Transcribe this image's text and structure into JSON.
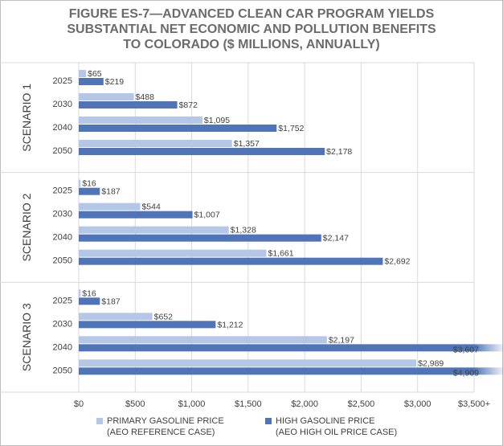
{
  "title_lines": [
    "FIGURE ES-7—ADVANCED CLEAN CAR PROGRAM YIELDS",
    "SUBSTANTIAL NET ECONOMIC AND POLLUTION BENEFITS",
    "TO COLORADO ($ MILLIONS, ANNUALLY)"
  ],
  "colors": {
    "primary": "#b4c7e7",
    "high": "#4f75b8",
    "grid": "#d9d9d9",
    "text": "#404040"
  },
  "chart_data": {
    "type": "bar",
    "orientation": "horizontal",
    "x_ticks": [
      0,
      500,
      1000,
      1500,
      2000,
      2500,
      3000,
      3500
    ],
    "x_tick_labels": [
      "$0",
      "$500",
      "$1,000",
      "$1,500",
      "$2,000",
      "$2,500",
      "$3,000",
      "$3,500+"
    ],
    "xlim": [
      0,
      3500
    ],
    "grid": true,
    "legend_position": "bottom",
    "series": [
      {
        "name_lines": [
          "PRIMARY GASOLINE PRICE",
          "(AEO REFERENCE CASE)"
        ]
      },
      {
        "name_lines": [
          "HIGH GASOLINE PRICE",
          "(AEO HIGH OIL PRICE CASE)"
        ]
      }
    ],
    "groups": [
      {
        "label": "SCENARIO 1",
        "categories": [
          "2025",
          "2030",
          "2040",
          "2050"
        ],
        "primary": [
          65,
          488,
          1095,
          1357
        ],
        "primary_labels": [
          "$65",
          "$488",
          "$1,095",
          "$1,357"
        ],
        "high": [
          219,
          872,
          1752,
          2178
        ],
        "high_labels": [
          "$219",
          "$872",
          "$1,752",
          "$2,178"
        ]
      },
      {
        "label": "SCENARIO 2",
        "categories": [
          "2025",
          "2030",
          "2040",
          "2050"
        ],
        "primary": [
          16,
          544,
          1328,
          1661
        ],
        "primary_labels": [
          "$16",
          "$544",
          "$1,328",
          "$1,661"
        ],
        "high": [
          187,
          1007,
          2147,
          2692
        ],
        "high_labels": [
          "$187",
          "$1,007",
          "$2,147",
          "$2,692"
        ]
      },
      {
        "label": "SCENARIO 3",
        "categories": [
          "2025",
          "2030",
          "2040",
          "2050"
        ],
        "primary": [
          16,
          652,
          2197,
          2989
        ],
        "primary_labels": [
          "$16",
          "$652",
          "$2,197",
          "$2,989"
        ],
        "high": [
          187,
          1212,
          3607,
          4909
        ],
        "high_labels": [
          "$187",
          "$1,212",
          "$3,607",
          "$4,909"
        ]
      }
    ]
  }
}
